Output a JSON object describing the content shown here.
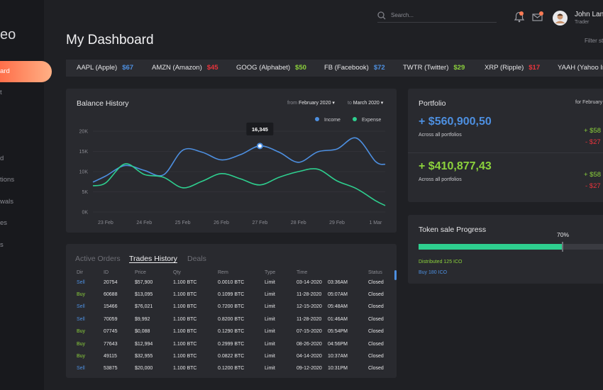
{
  "sidebar": {
    "logo": "eo",
    "items": [
      "ard",
      "t",
      "d",
      "tions",
      "wals",
      "es",
      "s"
    ],
    "active": 0
  },
  "header": {
    "search_placeholder": "Search...",
    "user": {
      "name": "John Lan",
      "role": "Trader"
    }
  },
  "page": {
    "title": "My Dashboard",
    "filter": "Filter st"
  },
  "ticker": [
    {
      "symbol": "AAPL (Apple)",
      "price": "$67",
      "color": "#4d8fe0"
    },
    {
      "symbol": "AMZN (Amazon)",
      "price": "$45",
      "color": "#e8343c"
    },
    {
      "symbol": "GOOG (Alphabet)",
      "price": "$50",
      "color": "#8cd23c"
    },
    {
      "symbol": "FB (Facebook)",
      "price": "$72",
      "color": "#4d8fe0"
    },
    {
      "symbol": "TWTR (Twitter)",
      "price": "$29",
      "color": "#8cd23c"
    },
    {
      "symbol": "XRP (Ripple)",
      "price": "$17",
      "color": "#e8343c"
    },
    {
      "symbol": "YAAH (Yahoo In",
      "price": null,
      "color": "#4d8fe0"
    }
  ],
  "balance_history": {
    "title": "Balance History",
    "from_label": "from",
    "from": "February 2020",
    "to_label": "to",
    "to": "March 2020",
    "chart": {
      "type": "line",
      "x": [
        -0.33,
        0,
        0.5,
        1,
        1.5,
        2,
        2.5,
        3,
        3.5,
        4,
        4.5,
        5,
        5.5,
        6,
        6.5,
        7,
        7.25
      ],
      "xlim": [
        -0.33,
        7.25
      ],
      "xticks": [
        {
          "value": 0,
          "label": "23 Feb"
        },
        {
          "value": 1,
          "label": "24 Feb"
        },
        {
          "value": 2,
          "label": "25 Feb"
        },
        {
          "value": 3,
          "label": "26 Feb"
        },
        {
          "value": 4,
          "label": "27 Feb"
        },
        {
          "value": 5,
          "label": "28 Feb"
        },
        {
          "value": 6,
          "label": "29 Feb"
        },
        {
          "value": 7,
          "label": "1 Mar"
        }
      ],
      "ylim": [
        0,
        20000
      ],
      "yticks": [
        {
          "value": 0,
          "label": "0K"
        },
        {
          "value": 5000,
          "label": "5K"
        },
        {
          "value": 10000,
          "label": "10K"
        },
        {
          "value": 15000,
          "label": "15K"
        },
        {
          "value": 20000,
          "label": "20K"
        }
      ],
      "grid": true,
      "series": [
        {
          "name": "Income",
          "color": "#4d8fe0",
          "values": [
            7400,
            8900,
            11500,
            10300,
            9200,
            15300,
            14800,
            12900,
            14200,
            16345,
            14800,
            12300,
            14900,
            15600,
            18300,
            12500,
            11800
          ],
          "value_labels": [
            null,
            null,
            null,
            null,
            null,
            null,
            null,
            null,
            null,
            "16,345",
            null,
            null,
            null,
            null,
            null,
            null,
            null
          ]
        },
        {
          "name": "Expense",
          "color": "#2ecf8f",
          "values": [
            6500,
            7200,
            11900,
            9300,
            8600,
            6000,
            7600,
            9500,
            8200,
            6700,
            8600,
            10000,
            10600,
            7700,
            5800,
            2800,
            1600
          ]
        }
      ]
    }
  },
  "portfolio": {
    "title": "Portfolio",
    "period": "for February",
    "items": [
      {
        "amount": "+ $560,900,50",
        "caption": "Across all portfolios",
        "up": "+ $58",
        "down": "- $27",
        "color": "#4d8fe0"
      },
      {
        "amount": "+ $410,877,43",
        "caption": "Across all portfolios",
        "up": "+ $58",
        "down": "- $27",
        "color": "#8cd23c"
      }
    ]
  },
  "token_sale": {
    "title": "Token sale Progress",
    "progress": 70,
    "progress_label": "70%",
    "distributed": "Distributed 125 ICO",
    "buy": "Buy 180 ICO"
  },
  "orders": {
    "tabs": [
      "Active Orders",
      "Trades History",
      "Deals"
    ],
    "active_tab": 1,
    "columns": [
      "Dir",
      "ID",
      "Price",
      "Qty",
      "Rem",
      "Type",
      "Time",
      "",
      "Status"
    ],
    "rows": [
      {
        "color": "#4d8fe0",
        "cells": [
          "Sell",
          "20754",
          "$57,900",
          "1.100 BTC",
          "0.0010 BTC",
          "Limit",
          "03-14-2020",
          "03:36AM",
          "Closed"
        ]
      },
      {
        "color": "#8cd23c",
        "cells": [
          "Buy",
          "60688",
          "$13,095",
          "1.100 BTC",
          "0.1099 BTC",
          "Limit",
          "11-28-2020",
          "05:07AM",
          "Closed"
        ]
      },
      {
        "color": "#4d8fe0",
        "cells": [
          "Sell",
          "15466",
          "$76,021",
          "1.100 BTC",
          "0.7200 BTC",
          "Limit",
          "12-15-2020",
          "05:48AM",
          "Closed"
        ]
      },
      {
        "color": "#4d8fe0",
        "cells": [
          "Sell",
          "70059",
          "$9,992",
          "1.100 BTC",
          "0.8200 BTC",
          "Limit",
          "11-28-2020",
          "01:46AM",
          "Closed"
        ]
      },
      {
        "color": "#8cd23c",
        "cells": [
          "Buy",
          "07745",
          "$0,088",
          "1.100 BTC",
          "0.1290 BTC",
          "Limit",
          "07-15-2020",
          "05:54PM",
          "Closed"
        ]
      },
      {
        "color": "#8cd23c",
        "cells": [
          "Buy",
          "77643",
          "$12,994",
          "1.100 BTC",
          "0.2999 BTC",
          "Limit",
          "08-26-2020",
          "04:56PM",
          "Closed"
        ]
      },
      {
        "color": "#8cd23c",
        "cells": [
          "Buy",
          "49115",
          "$32,955",
          "1.100 BTC",
          "0.0822 BTC",
          "Limit",
          "04-14-2020",
          "10:37AM",
          "Closed"
        ]
      },
      {
        "color": "#4d8fe0",
        "cells": [
          "Sell",
          "53875",
          "$20,000",
          "1.100 BTC",
          "0.1200 BTC",
          "Limit",
          "09-12-2020",
          "10:31PM",
          "Closed"
        ]
      }
    ]
  }
}
